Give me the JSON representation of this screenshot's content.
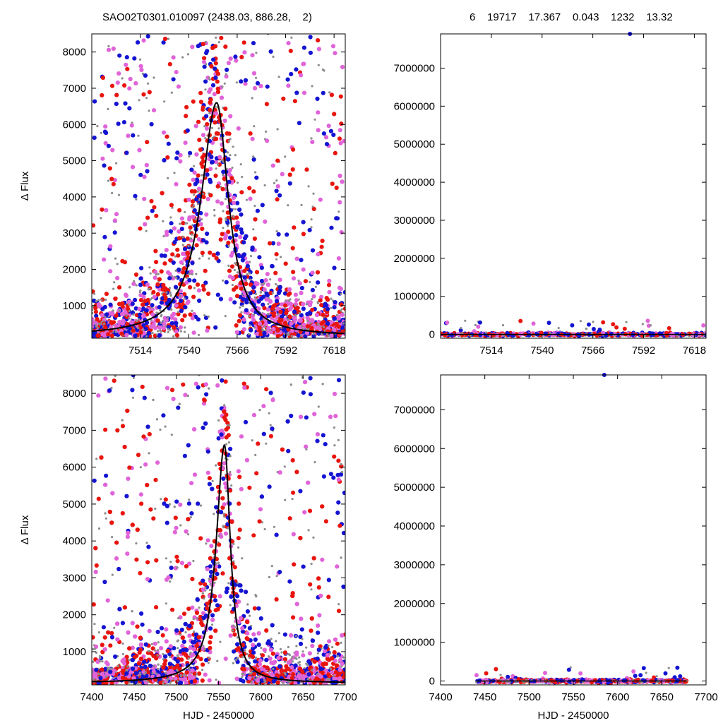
{
  "header": {
    "left_title": "SAO02T0301.010097 (2438.03, 886.28,    2)",
    "right_title": "6    19717    17.367    0.043    1232    13.32"
  },
  "colors": {
    "red": "#e8150f",
    "blue": "#1414d2",
    "magenta": "#e064d8",
    "gray": "#8c8c8c",
    "curve": "#000000"
  },
  "chart_data": [
    {
      "id": "top-left",
      "type": "scatter",
      "xlim": [
        7488,
        7624
      ],
      "ylim": [
        100,
        8500
      ],
      "xticks": [
        7514,
        7540,
        7566,
        7592,
        7618
      ],
      "yticks": [
        1000,
        2000,
        3000,
        4000,
        5000,
        6000,
        7000,
        8000
      ],
      "ylabel": "Δ Flux",
      "xlabel": "",
      "model": {
        "peak_x": 7555,
        "peak_y": 6600,
        "width_left": 12,
        "width_right": 9,
        "baseline": 150
      }
    },
    {
      "id": "top-right",
      "type": "scatter",
      "xlim": [
        7488,
        7624
      ],
      "ylim": [
        -100000,
        7900000
      ],
      "xticks": [
        7514,
        7540,
        7566,
        7592,
        7618
      ],
      "yticks": [
        0,
        1000000,
        2000000,
        3000000,
        4000000,
        5000000,
        6000000,
        7000000
      ],
      "ylabel": "",
      "xlabel": "",
      "outlier": {
        "x": 7585,
        "y": 7900000
      }
    },
    {
      "id": "bottom-left",
      "type": "scatter",
      "xlim": [
        7400,
        7700
      ],
      "ylim": [
        100,
        8500
      ],
      "xticks": [
        7400,
        7450,
        7500,
        7550,
        7600,
        7650,
        7700
      ],
      "yticks": [
        1000,
        2000,
        3000,
        4000,
        5000,
        6000,
        7000,
        8000
      ],
      "ylabel": "Δ Flux",
      "xlabel": "HJD - 2450000",
      "model": {
        "peak_x": 7557,
        "peak_y": 6600,
        "width_left": 14,
        "width_right": 10,
        "baseline": 150
      }
    },
    {
      "id": "bottom-right",
      "type": "scatter",
      "xlim": [
        7400,
        7700
      ],
      "ylim": [
        -100000,
        7900000
      ],
      "xticks": [
        7400,
        7450,
        7500,
        7550,
        7600,
        7650,
        7700
      ],
      "yticks": [
        0,
        1000000,
        2000000,
        3000000,
        4000000,
        5000000,
        6000000,
        7000000
      ],
      "ylabel": "",
      "xlabel": "HJD - 2450000",
      "outlier": {
        "x": 7585,
        "y": 7900000
      }
    }
  ]
}
